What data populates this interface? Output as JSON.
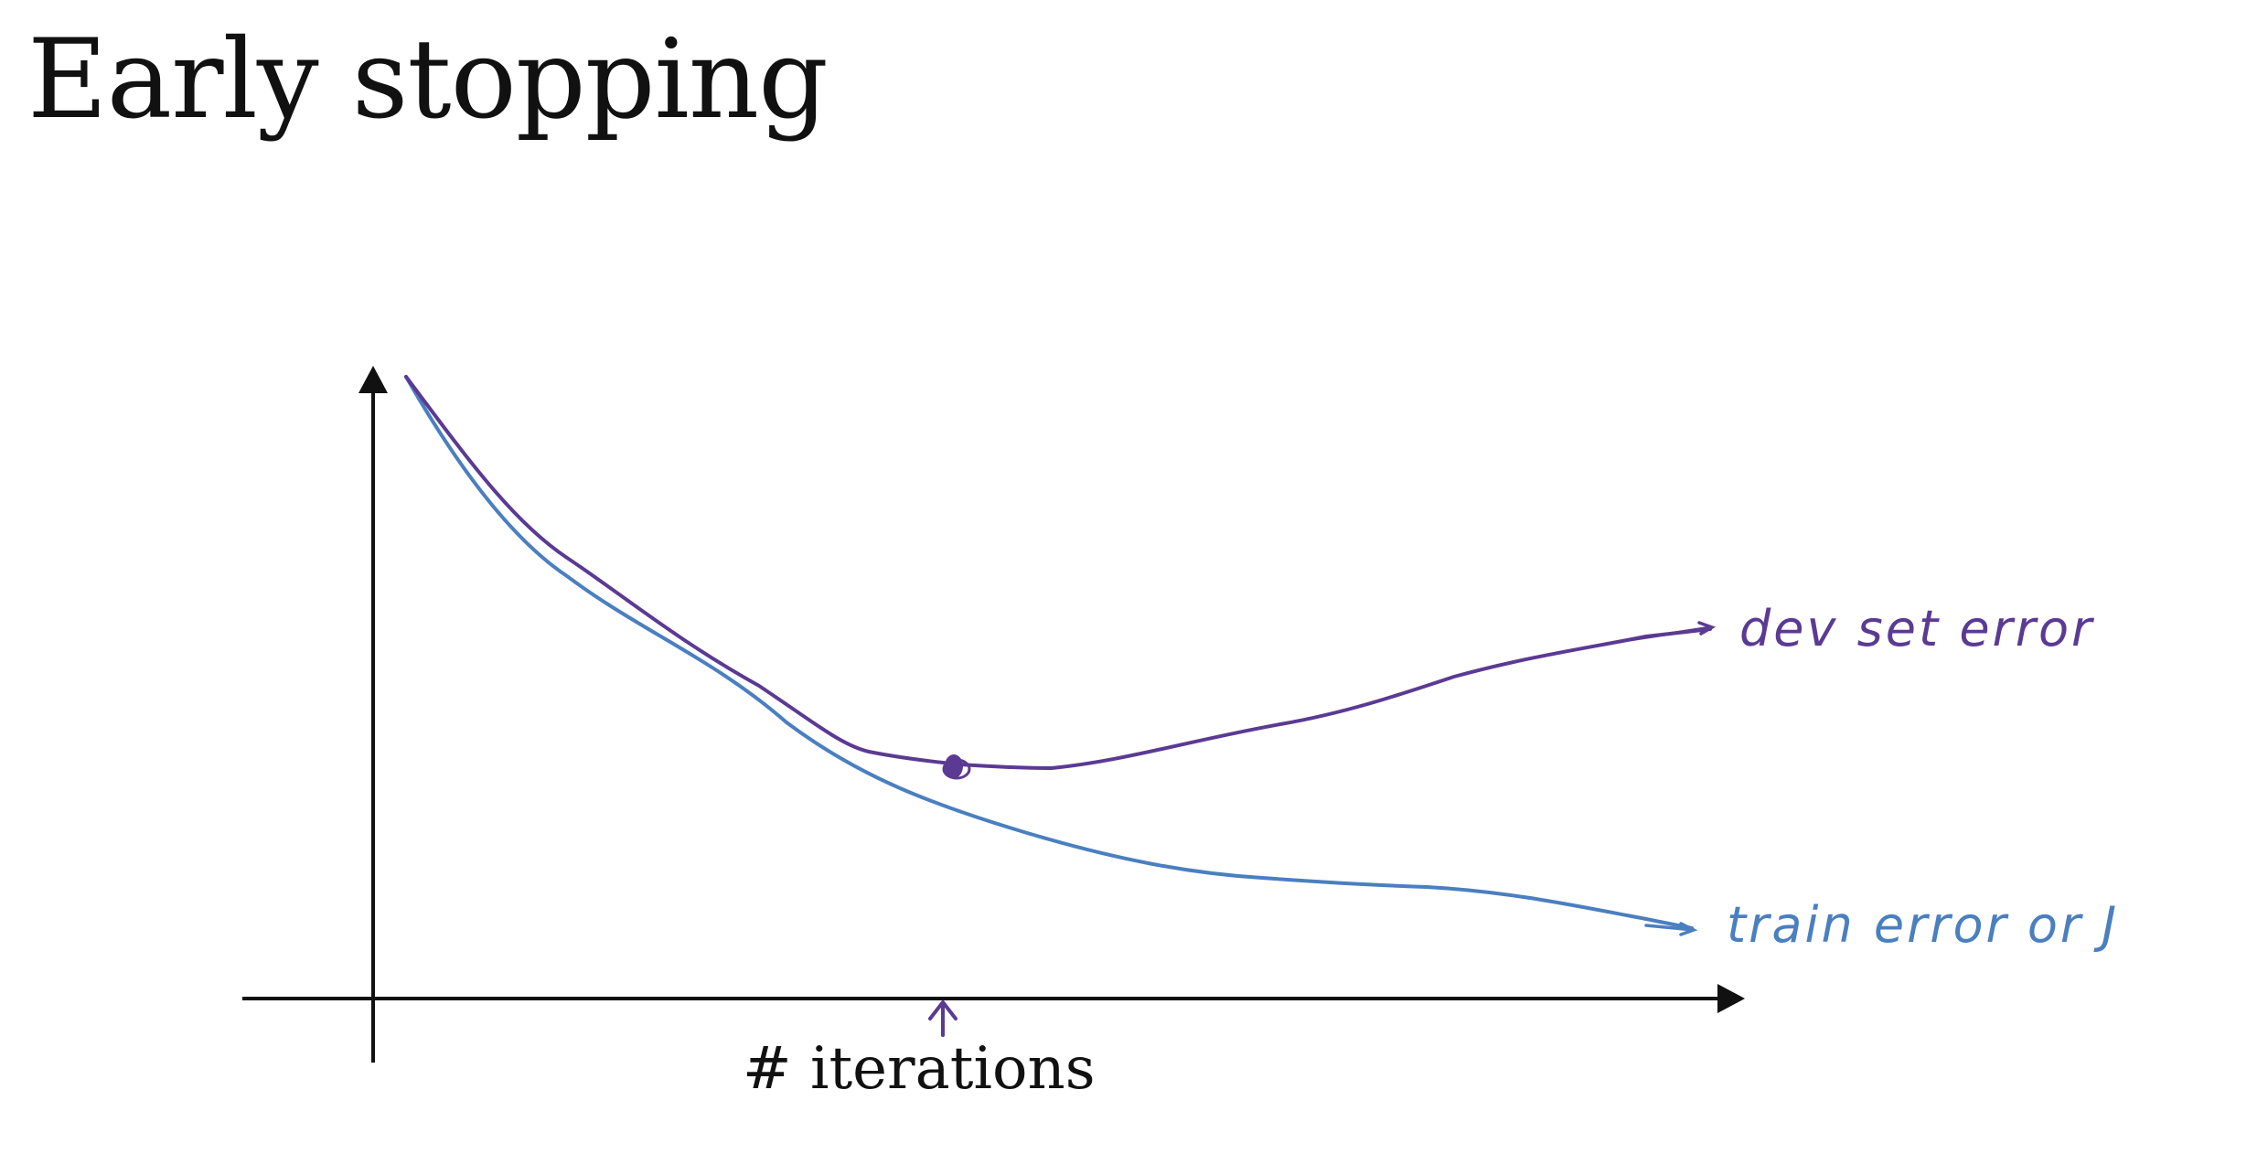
{
  "title": "Early stopping",
  "x_axis_label": "# iterations",
  "curves": {
    "dev": {
      "label": "dev set error",
      "color": "#5b3a93"
    },
    "train": {
      "label": "train error or J",
      "color": "#4a7fc0"
    }
  },
  "colors": {
    "axis": "#111111",
    "background": "#ffffff"
  }
}
